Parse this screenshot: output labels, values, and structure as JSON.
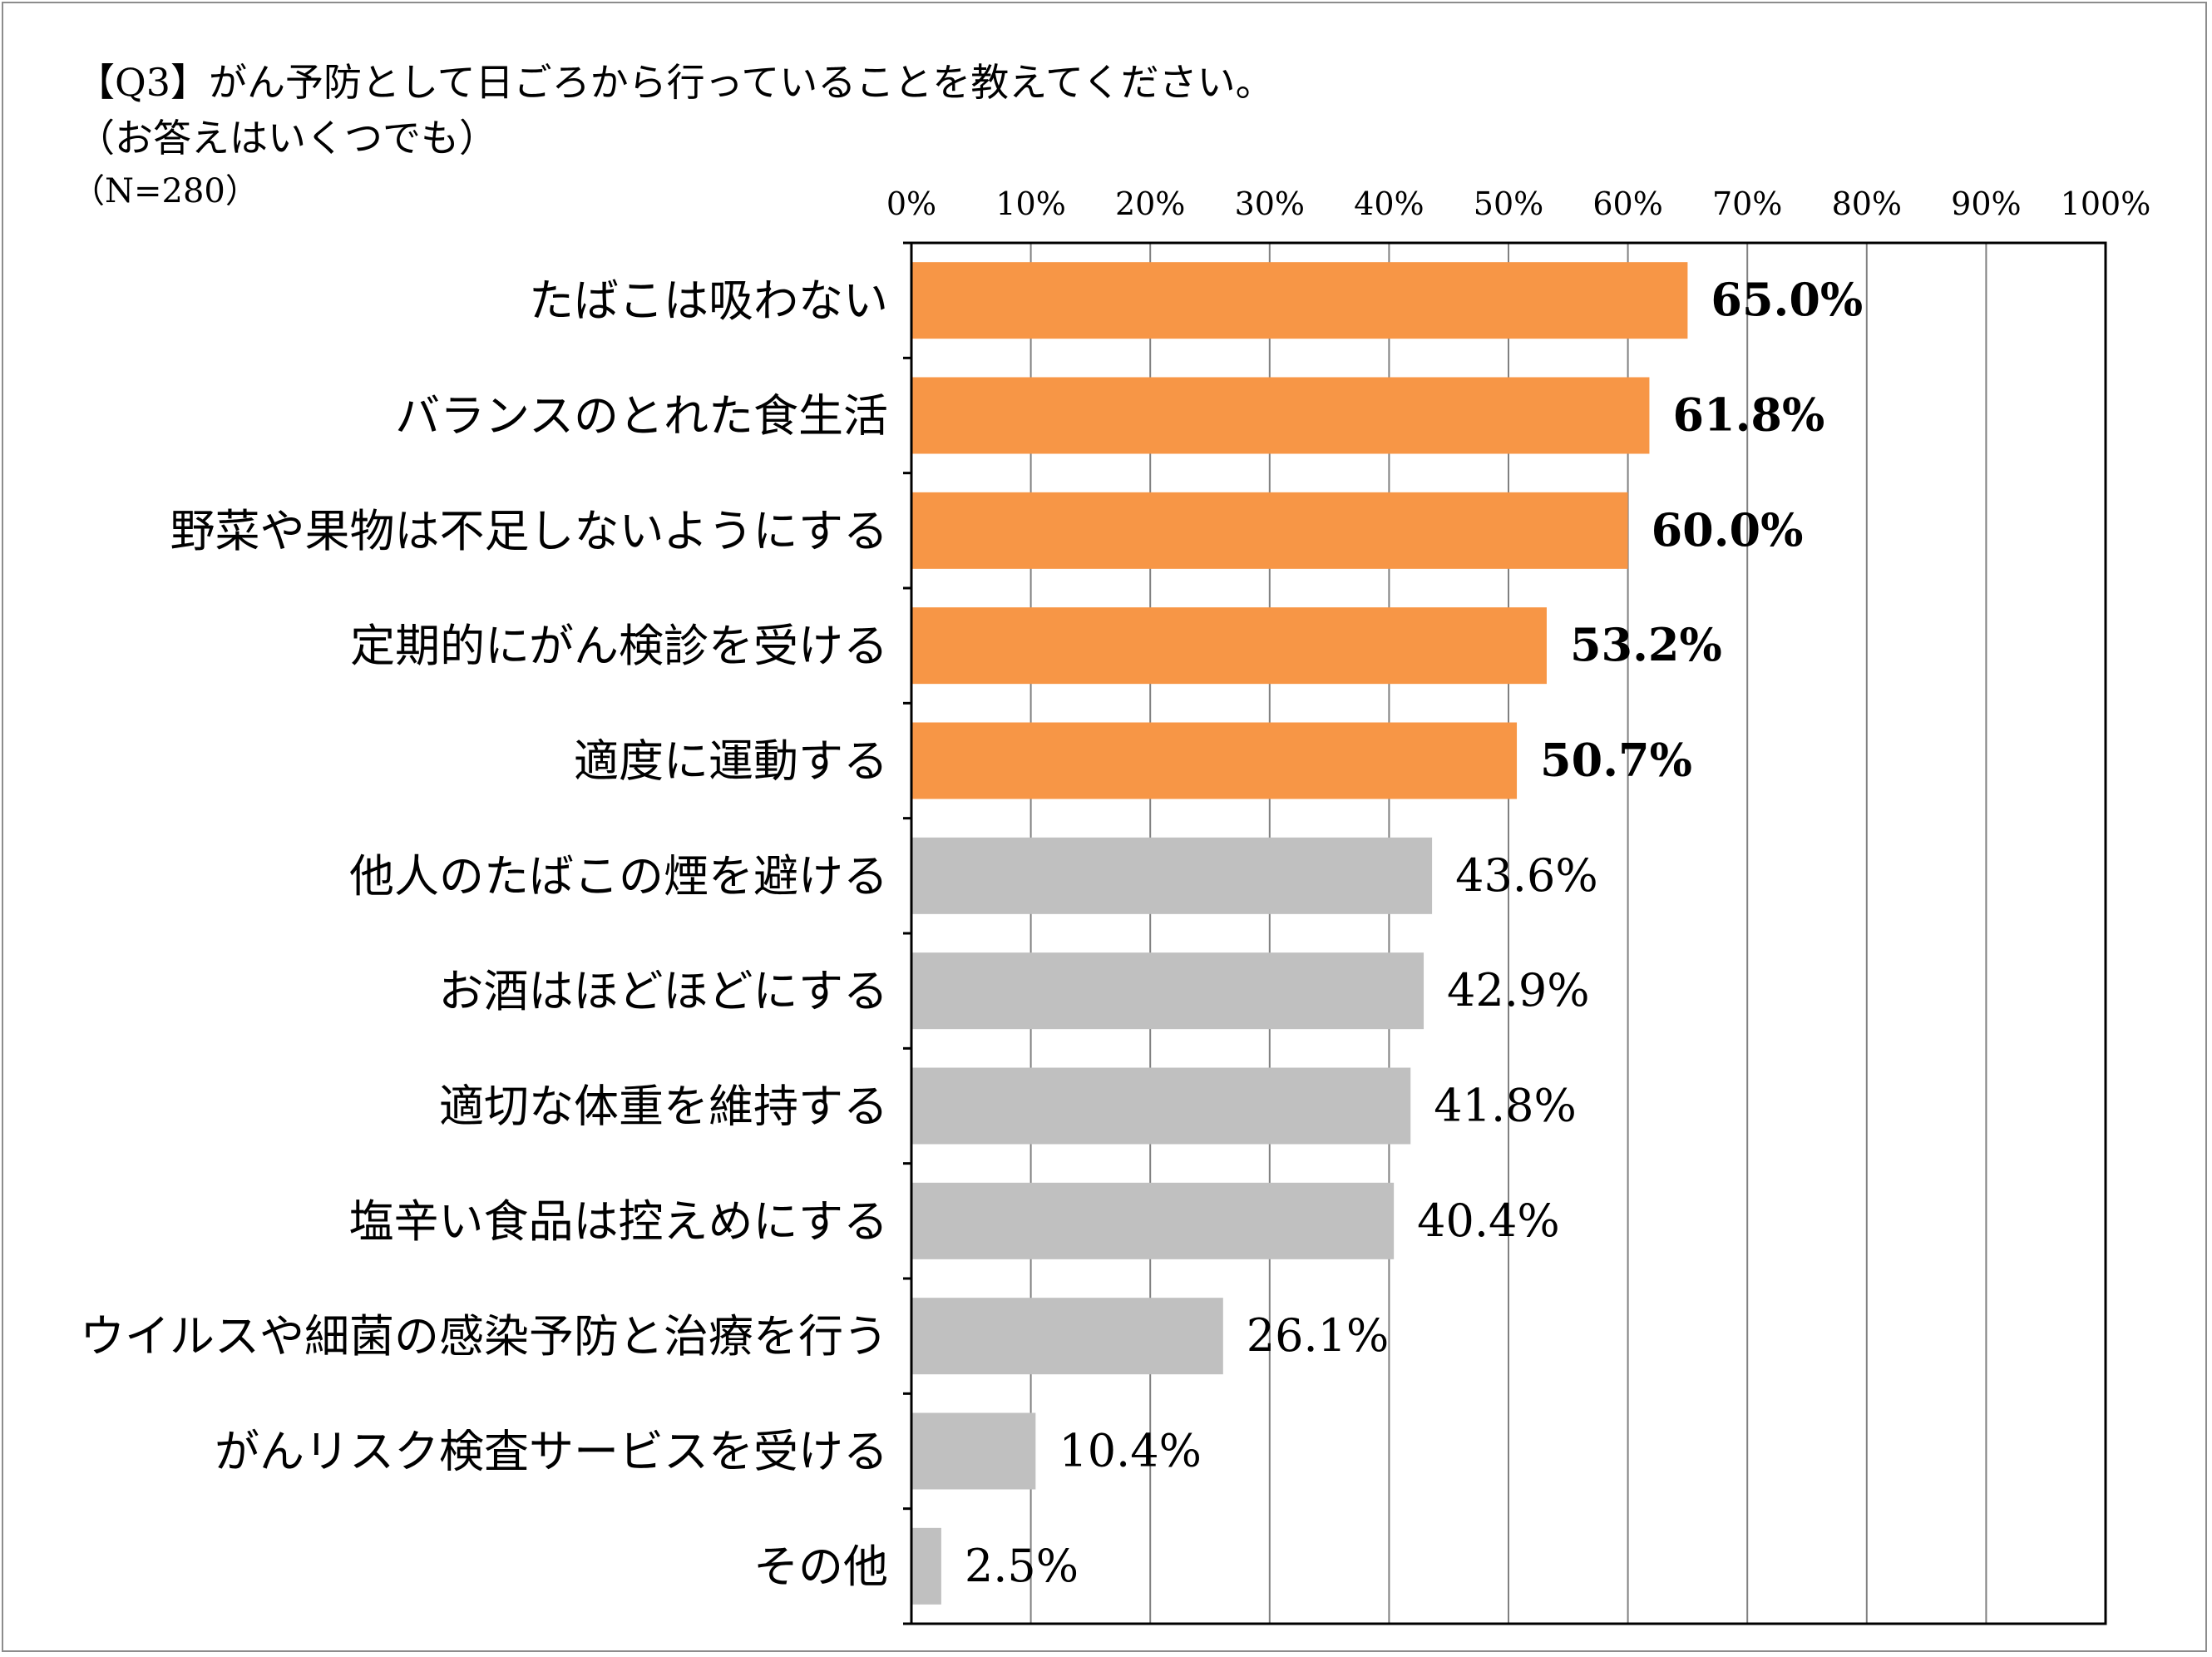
{
  "title": "【Q3】がん予防として日ごろから行っていることを教えてください。",
  "subtitle": "（お答えはいくつでも）",
  "sample_size": "（N=280）",
  "colors": {
    "highlight": "#F79646",
    "normal": "#C0C0C0",
    "gridline": "#808080",
    "axis": "#000000"
  },
  "chart_data": {
    "type": "bar",
    "orientation": "horizontal",
    "title": "【Q3】がん予防として日ごろから行っていることを教えてください。",
    "categories": [
      "たばこは吸わない",
      "バランスのとれた食生活",
      "野菜や果物は不足しないようにする",
      "定期的にがん検診を受ける",
      "適度に運動する",
      "他人のたばこの煙を避ける",
      "お酒はほどほどにする",
      "適切な体重を維持する",
      "塩辛い食品は控えめにする",
      "ウイルスや細菌の感染予防と治療を行う",
      "がんリスク検査サービスを受ける",
      "その他"
    ],
    "values": [
      65.0,
      61.8,
      60.0,
      53.2,
      50.7,
      43.6,
      42.9,
      41.8,
      40.4,
      26.1,
      10.4,
      2.5
    ],
    "data_labels": [
      "65.0%",
      "61.8%",
      "60.0%",
      "53.2%",
      "50.7%",
      "43.6%",
      "42.9%",
      "41.8%",
      "40.4%",
      "26.1%",
      "10.4%",
      "2.5%"
    ],
    "highlighted": [
      true,
      true,
      true,
      true,
      true,
      false,
      false,
      false,
      false,
      false,
      false,
      false
    ],
    "xlim": [
      0,
      100
    ],
    "xticks": [
      "0%",
      "10%",
      "20%",
      "30%",
      "40%",
      "50%",
      "60%",
      "70%",
      "80%",
      "90%",
      "100%"
    ],
    "axis_position": "top",
    "grid": true,
    "legend": false
  }
}
